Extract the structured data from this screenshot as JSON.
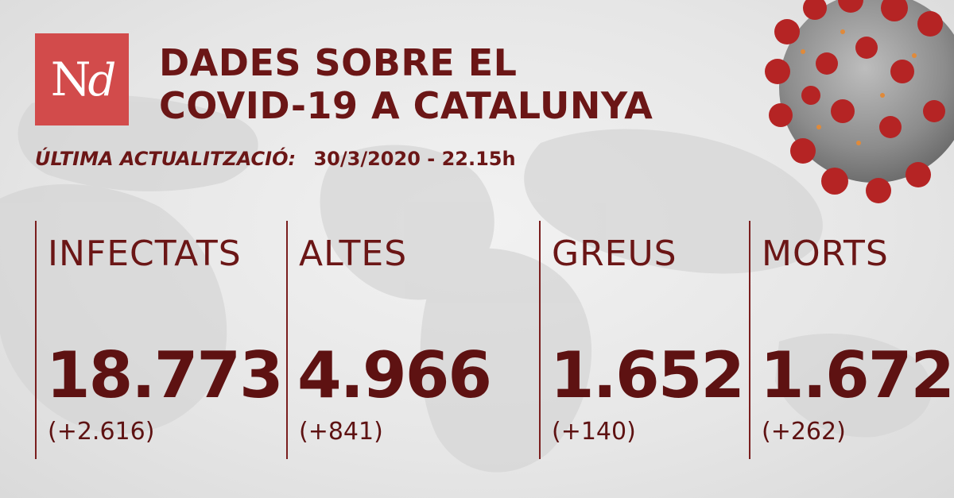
{
  "logo": {
    "text_main": "N",
    "text_italic": "d"
  },
  "title": {
    "line1": "DADES SOBRE EL",
    "line2": "COVID-19 A CATALUNYA"
  },
  "update": {
    "label": "ÚLTIMA ACTUALITZACIÓ:",
    "value": "30/3/2020 - 22.15h"
  },
  "stats": [
    {
      "name": "INFECTATS",
      "value": "18.773",
      "delta": "(+2.616)"
    },
    {
      "name": "ALTES",
      "value": "4.966",
      "delta": "(+841)"
    },
    {
      "name": "GREUS",
      "value": "1.652",
      "delta": "(+140)"
    },
    {
      "name": "MORTS",
      "value": "1.672",
      "delta": "(+262)"
    }
  ],
  "colors": {
    "accent": "#d24b4b",
    "text": "#6b1616",
    "divider": "#7a1e1e",
    "virus_spike": "#b52424"
  }
}
